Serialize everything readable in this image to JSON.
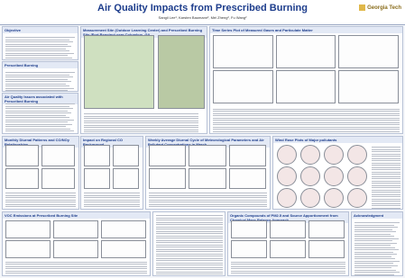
{
  "header": {
    "title": "Air Quality Impacts from Prescribed Burning",
    "authors": "Sangil Lee¹, Karsten Baumann², Mei Zheng², Fu Wang²",
    "logo": "Georgia Tech"
  },
  "sections": [
    {
      "title": "Objective"
    },
    {
      "title": "Prescribed Burning"
    },
    {
      "title": "Air Quality Issues associated with Prescribed Burning"
    },
    {
      "title": "Measurement Site (Outdoor Learning Center) and Prescribed Burning Site (Fort Benning) near Columbus, GA"
    },
    {
      "title": "Time Series Plot of Measured Gases and Particulate Matter"
    },
    {
      "title": "Monthly Diurnal Patterns and CO/NOy Relationships"
    },
    {
      "title": "Impact on Regional CO Background"
    },
    {
      "title": "Weekly Average Diurnal Cycle of Meteorological Parameters and Air Pollutant Concentrations in March"
    },
    {
      "title": "Wind Rose Plots of Major pollutants"
    },
    {
      "title": "VOC Emissions at Prescribed Burning Site"
    },
    {
      "title": "Organic Compounds of PM2.5 and Source Apportionment from Chemical Mass Balance Approach"
    },
    {
      "title": "Acknowledgment"
    }
  ]
}
